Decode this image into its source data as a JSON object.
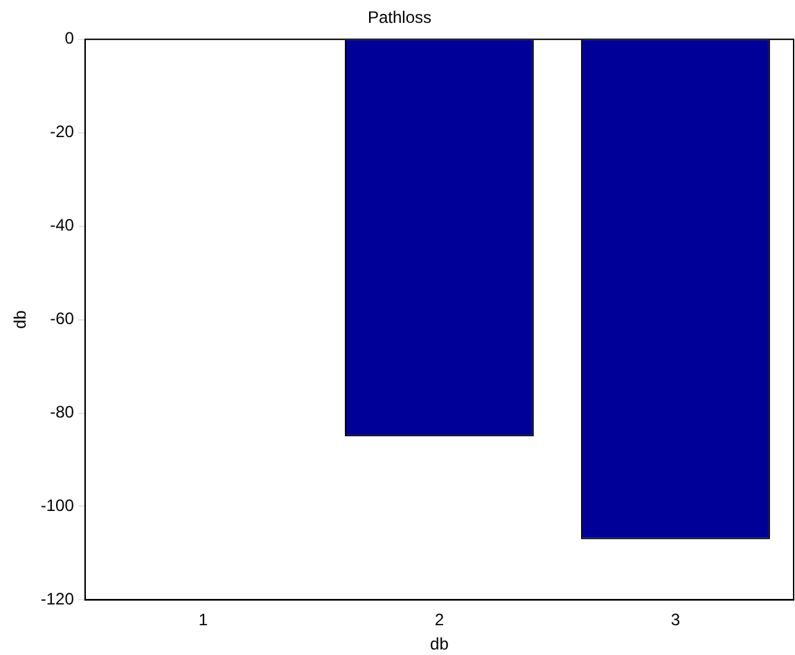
{
  "chart_data": {
    "type": "bar",
    "title": "Pathloss",
    "xlabel": "db",
    "ylabel": "db",
    "categories": [
      "1",
      "2",
      "3"
    ],
    "values": [
      0,
      -85,
      -107
    ],
    "color": "#000099",
    "ylim": [
      -120,
      0
    ],
    "yticks": [
      -120,
      -100,
      -80,
      -60,
      -40,
      -20,
      0
    ],
    "grid": false,
    "legend": false
  }
}
